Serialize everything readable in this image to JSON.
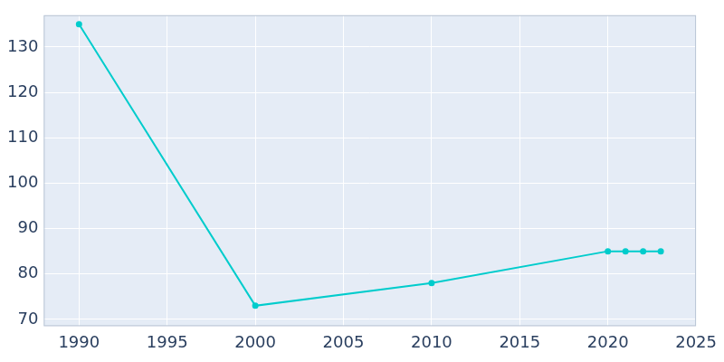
{
  "chart_data": {
    "type": "line",
    "x": [
      1990,
      2000,
      2010,
      2020,
      2021,
      2022,
      2023
    ],
    "values": [
      135,
      73,
      78,
      85,
      85,
      85,
      85
    ],
    "color": "#00cccc",
    "marker": "circle",
    "xlim": [
      1988,
      2025
    ],
    "xticks": [
      1990,
      1995,
      2000,
      2005,
      2010,
      2015,
      2020,
      2025
    ],
    "ylim": [
      68.5,
      137
    ],
    "yticks": [
      70,
      80,
      90,
      100,
      110,
      120,
      130
    ],
    "grid": true
  }
}
